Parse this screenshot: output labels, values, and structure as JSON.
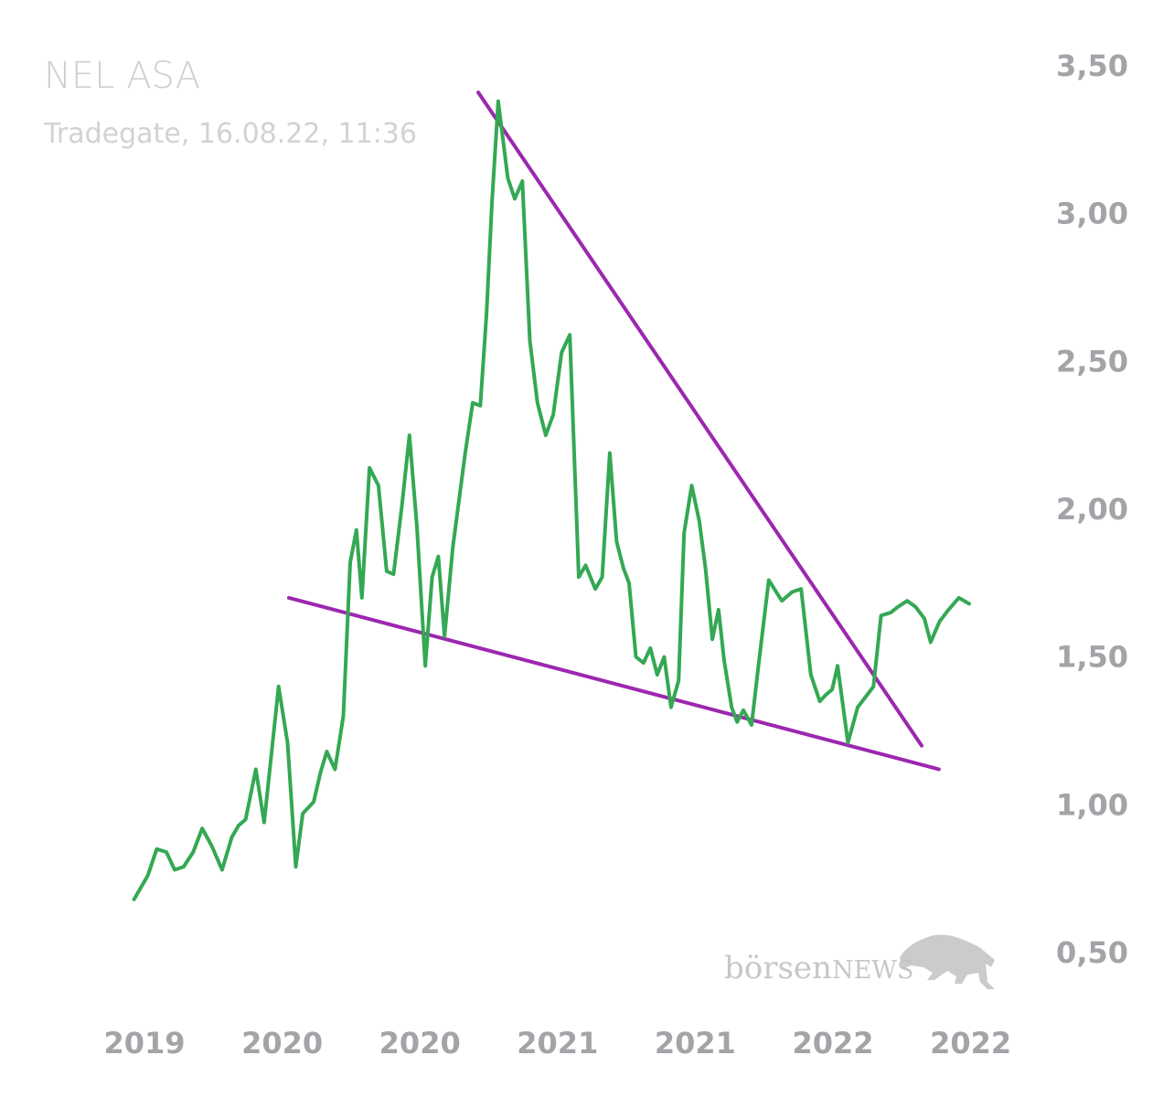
{
  "chart_data": {
    "type": "line",
    "title": "NEL ASA",
    "subtitle": "Tradegate, 16.08.22, 11:36",
    "y_ticks": [
      "3,50",
      "3,00",
      "2,50",
      "2,00",
      "1,50",
      "1,00",
      "0,50"
    ],
    "y_tick_values": [
      3.5,
      3.0,
      2.5,
      2.0,
      1.5,
      1.0,
      0.5
    ],
    "x_ticks": [
      "2019",
      "2020",
      "2020",
      "2021",
      "2021",
      "2022",
      "2022"
    ],
    "x_tick_positions": [
      0.0,
      2.0,
      4.0,
      6.0,
      8.0,
      10.0,
      12.0
    ],
    "ylim": [
      0.5,
      3.5
    ],
    "xlim": [
      0.0,
      12.0
    ],
    "grid": false,
    "series": [
      {
        "color": "#34a853",
        "x": [
          0.22,
          0.42,
          0.55,
          0.69,
          0.81,
          0.94,
          1.08,
          1.21,
          1.35,
          1.5,
          1.64,
          1.74,
          1.84,
          1.99,
          2.11,
          2.32,
          2.45,
          2.57,
          2.67,
          2.83,
          2.93,
          3.02,
          3.14,
          3.26,
          3.36,
          3.45,
          3.53,
          3.64,
          3.77,
          3.89,
          3.99,
          4.11,
          4.22,
          4.33,
          4.45,
          4.55,
          4.64,
          4.73,
          4.85,
          5.03,
          5.14,
          5.25,
          5.34,
          5.42,
          5.51,
          5.65,
          5.75,
          5.86,
          5.97,
          6.08,
          6.2,
          6.31,
          6.43,
          6.55,
          6.68,
          6.78,
          6.92,
          7.02,
          7.13,
          7.23,
          7.33,
          7.41,
          7.51,
          7.62,
          7.72,
          7.82,
          7.92,
          8.02,
          8.13,
          8.21,
          8.32,
          8.43,
          8.52,
          8.62,
          8.71,
          8.79,
          8.9,
          8.98,
          9.07,
          9.19,
          9.29,
          9.44,
          9.63,
          9.78,
          9.91,
          10.05,
          10.18,
          10.26,
          10.36,
          10.44,
          10.59,
          10.73,
          10.83,
          10.96,
          11.07,
          11.21,
          11.32,
          11.45,
          11.57,
          11.7,
          11.79,
          11.92,
          12.05,
          12.2,
          12.35
        ],
        "y": [
          0.68,
          0.76,
          0.85,
          0.84,
          0.78,
          0.79,
          0.84,
          0.92,
          0.86,
          0.78,
          0.89,
          0.93,
          0.95,
          1.12,
          0.94,
          1.4,
          1.21,
          0.79,
          0.97,
          1.01,
          1.11,
          1.18,
          1.12,
          1.3,
          1.82,
          1.93,
          1.7,
          2.14,
          2.08,
          1.79,
          1.78,
          2.01,
          2.25,
          1.94,
          1.47,
          1.77,
          1.84,
          1.57,
          1.87,
          2.19,
          2.36,
          2.35,
          2.66,
          3.04,
          3.38,
          3.12,
          3.05,
          3.11,
          2.57,
          2.36,
          2.25,
          2.32,
          2.53,
          2.59,
          1.77,
          1.81,
          1.73,
          1.77,
          2.19,
          1.89,
          1.8,
          1.75,
          1.5,
          1.48,
          1.53,
          1.44,
          1.5,
          1.33,
          1.42,
          1.92,
          2.08,
          1.96,
          1.8,
          1.56,
          1.66,
          1.49,
          1.33,
          1.28,
          1.32,
          1.27,
          1.47,
          1.76,
          1.69,
          1.72,
          1.73,
          1.44,
          1.35,
          1.37,
          1.39,
          1.47,
          1.21,
          1.33,
          1.36,
          1.4,
          1.64,
          1.65,
          1.67,
          1.69,
          1.67,
          1.63,
          1.55,
          1.62,
          1.66,
          1.7,
          1.68
        ]
      }
    ],
    "trendlines": [
      {
        "color": "#9c27b0",
        "x": [
          5.22,
          11.66
        ],
        "y": [
          3.41,
          1.2
        ]
      },
      {
        "color": "#9c27b0",
        "x": [
          2.47,
          11.91
        ],
        "y": [
          1.7,
          1.12
        ]
      }
    ],
    "watermark": "börsenNEWS"
  }
}
